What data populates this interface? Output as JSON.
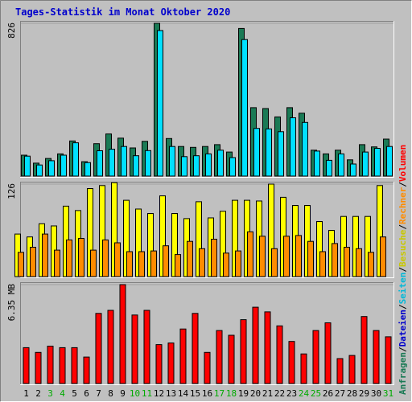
{
  "chart_data": {
    "type": "bar",
    "title": "Tages-Statistik im Monat Oktober 2020",
    "x": [
      "1",
      "2",
      "3",
      "4",
      "5",
      "6",
      "7",
      "8",
      "9",
      "10",
      "11",
      "12",
      "13",
      "14",
      "15",
      "16",
      "17",
      "18",
      "19",
      "20",
      "21",
      "22",
      "23",
      "24",
      "25",
      "26",
      "27",
      "28",
      "29",
      "30",
      "31"
    ],
    "weekend_days": [
      "3",
      "4",
      "10",
      "11",
      "17",
      "18",
      "24",
      "25",
      "31"
    ],
    "panels": [
      {
        "id": "top",
        "tick_label": "826",
        "tick_value": 826,
        "ylim": [
          0,
          826
        ],
        "series": [
          {
            "name": "Anfragen",
            "color": "#1a7a55",
            "values": [
              113,
              70,
              95,
              120,
              190,
              78,
              175,
              228,
              205,
              152,
              188,
              826,
              203,
              160,
              155,
              160,
              170,
              130,
              798,
              370,
              365,
              320,
              370,
              340,
              140,
              120,
              140,
              88,
              170,
              158,
              200
            ]
          },
          {
            "name": "Dateien",
            "color": "#00e0ff",
            "values": [
              108,
              60,
              83,
              113,
              180,
              73,
              137,
              145,
              160,
              110,
              138,
              787,
              160,
              105,
              110,
              120,
              140,
              100,
              738,
              258,
              255,
              240,
              315,
              290,
              135,
              85,
              120,
              65,
              130,
              150,
              160
            ]
          }
        ]
      },
      {
        "id": "middle",
        "tick_label": "126",
        "tick_value": 126,
        "ylim": [
          0,
          126
        ],
        "series": [
          {
            "name": "Seiten",
            "color": "#ffff00",
            "values": [
              58,
              54,
              72,
              69,
              96,
              90,
              120,
              124,
              128,
              104,
              92,
              86,
              110,
              86,
              79,
              102,
              80,
              89,
              104,
              104,
              103,
              126,
              108,
              97,
              97,
              75,
              63,
              82,
              82,
              82,
              124
            ]
          },
          {
            "name": "Besuche",
            "color": "#ff8c00",
            "values": [
              33,
              40,
              58,
              36,
              50,
              52,
              36,
              50,
              46,
              34,
              34,
              35,
              42,
              30,
              48,
              38,
              51,
              32,
              35,
              61,
              55,
              38,
              55,
              56,
              48,
              34,
              45,
              40,
              38,
              33,
              54
            ]
          }
        ]
      },
      {
        "id": "bottom",
        "tick_label": "6.35 MB",
        "tick_value": 6.35,
        "ylim": [
          0,
          6.35
        ],
        "series": [
          {
            "name": "Rechner",
            "color": "#ff0000",
            "values": [
              2.3,
              2.0,
              2.4,
              2.3,
              2.3,
              1.7,
              4.5,
              4.7,
              6.35,
              4.4,
              4.7,
              2.5,
              2.6,
              3.5,
              4.5,
              2.0,
              3.4,
              3.1,
              4.1,
              4.9,
              4.6,
              3.7,
              2.7,
              1.9,
              3.4,
              3.9,
              1.6,
              1.8,
              4.3,
              3.4,
              3.0
            ]
          }
        ]
      }
    ],
    "side_legend": [
      {
        "text": "Anfragen",
        "color": "#1a7a55"
      },
      {
        "text": "/",
        "color": "#000000"
      },
      {
        "text": "Dateien",
        "color": "#0000cc"
      },
      {
        "text": "/",
        "color": "#000000"
      },
      {
        "text": "Seiten",
        "color": "#00b8d8"
      },
      {
        "text": "/",
        "color": "#000000"
      },
      {
        "text": "Besuche",
        "color": "#c8c800"
      },
      {
        "text": "/",
        "color": "#000000"
      },
      {
        "text": "Rechner",
        "color": "#ff8c00"
      },
      {
        "text": "/",
        "color": "#000000"
      },
      {
        "text": "Volumen",
        "color": "#ff0000"
      }
    ],
    "colors": {
      "title": "#0000cc",
      "weekend_label": "#00aa00",
      "weekday_label": "#000000",
      "plot_background": "#c0c0c0",
      "gridline": "#a0a0a0"
    }
  }
}
